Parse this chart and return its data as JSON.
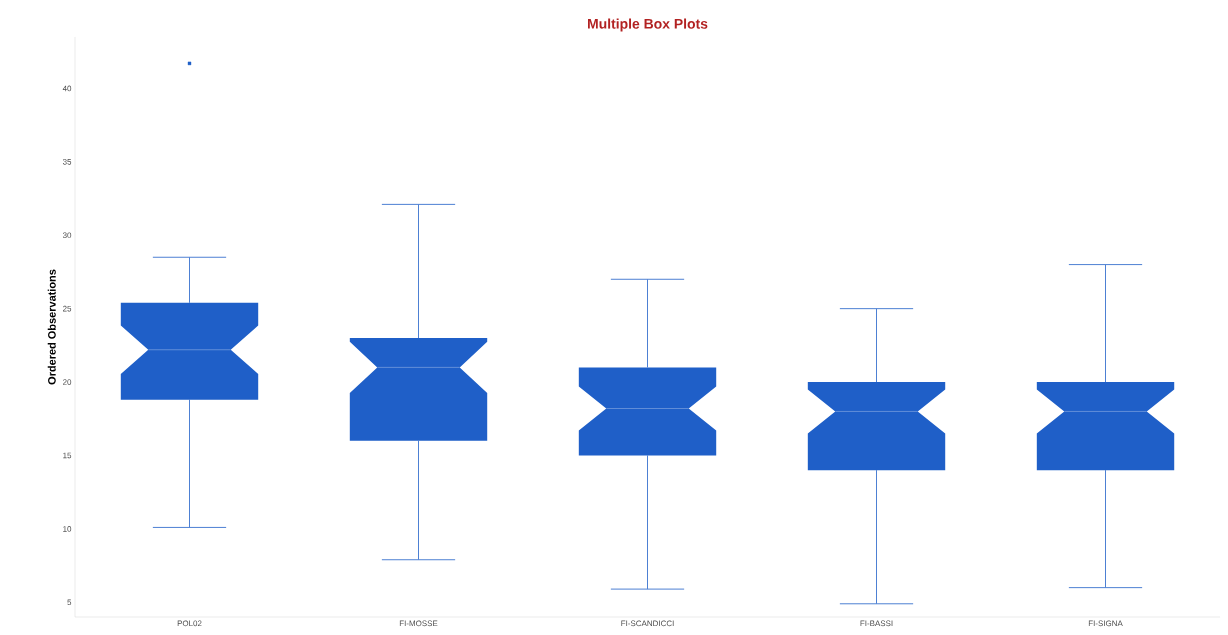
{
  "chart_data": {
    "type": "box",
    "title": "Multiple Box Plots",
    "ylabel": "Ordered Observations",
    "categories": [
      "POL02",
      "FI-MOSSE",
      "FI-SCANDICCI",
      "FI-BASSI",
      "FI-SIGNA"
    ],
    "boxes": [
      {
        "low": 10.1,
        "q1": 18.8,
        "median": 22.2,
        "q3": 25.4,
        "high": 28.5,
        "outliers": [
          41.7
        ]
      },
      {
        "low": 7.9,
        "q1": 16,
        "median": 21,
        "q3": 23,
        "high": 32.1
      },
      {
        "low": 5.9,
        "q1": 15,
        "median": 18.2,
        "q3": 21,
        "high": 27
      },
      {
        "low": 4.9,
        "q1": 14,
        "median": 18,
        "q3": 20,
        "high": 25
      },
      {
        "low": 6,
        "q1": 14,
        "median": 18,
        "q3": 20,
        "high": 28
      }
    ],
    "color": "#1f5fc8",
    "ylim": [
      4,
      43.5
    ],
    "yticks": [
      5,
      10,
      15,
      20,
      25,
      30,
      35,
      40
    ]
  }
}
